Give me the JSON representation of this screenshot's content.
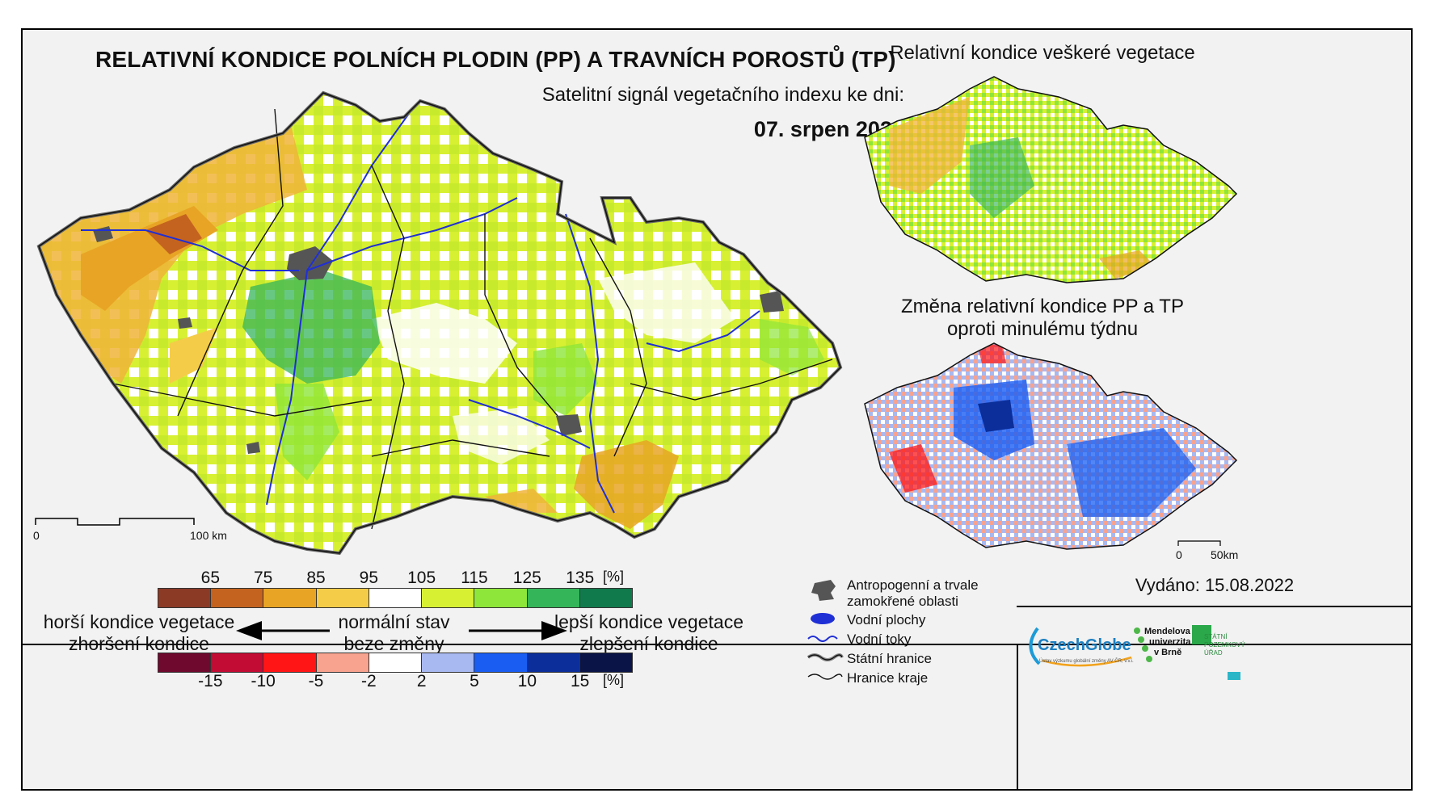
{
  "main_map": {
    "title": "RELATIVNÍ KONDICE POLNÍCH PLODIN (PP) A TRAVNÍCH POROSTŮ (TP)",
    "subtitle": "Satelitní signál vegetačního indexu ke dni:",
    "date": "07. srpen 2022",
    "scale_zero": "0",
    "scale_end": "100 km"
  },
  "inset_top": {
    "title": "Relativní kondice veškeré vegetace"
  },
  "inset_bottom": {
    "title_line1": "Změna relativní kondice PP a TP",
    "title_line2": "oproti minulému týdnu",
    "scale_zero": "0",
    "scale_end": "50km"
  },
  "legend": {
    "condition_ticks": [
      "65",
      "75",
      "85",
      "95",
      "105",
      "115",
      "125",
      "135"
    ],
    "condition_unit": "[%]",
    "condition_colors": [
      "#8b3a26",
      "#c4631f",
      "#e8a425",
      "#f5cc48",
      "#ffffff",
      "#d7f032",
      "#8ee63a",
      "#35b55a",
      "#117a4d"
    ],
    "left_line1": "horší kondice vegetace",
    "left_line2": "zhoršení kondice",
    "center_line1": "normální stav",
    "center_line2": "beze změny",
    "right_line1": "lepší kondice vegetace",
    "right_line2": "zlepšení kondice",
    "change_ticks": [
      "-15",
      "-10",
      "-5",
      "-2",
      "2",
      "5",
      "10",
      "15"
    ],
    "change_unit": "[%]",
    "change_colors": [
      "#6f0a2e",
      "#c20c33",
      "#ff1515",
      "#f7a38f",
      "#ffffff",
      "#a8b8f0",
      "#1a5df2",
      "#0b2e9a",
      "#0a1446"
    ]
  },
  "symbols": {
    "urban": "Antropogenní a trvale zamokřené oblasti",
    "water_areas": "Vodní plochy",
    "rivers": "Vodní toky",
    "state_border": "Státní hranice",
    "region_border": "Hranice kraje"
  },
  "issued": "Vydáno: 15.08.2022",
  "logos": {
    "czechglobe": "CzechGlobe",
    "czechglobe_sub": "Ústav výzkumu globální změny AV ČR, v.v.i.",
    "mendel_1": "Mendelova",
    "mendel_2": "univerzita",
    "mendel_3": "v Brně",
    "spu_1": "STÁTNÍ",
    "spu_2": "POZEMKOVÝ",
    "spu_3": "ÚŘAD"
  }
}
